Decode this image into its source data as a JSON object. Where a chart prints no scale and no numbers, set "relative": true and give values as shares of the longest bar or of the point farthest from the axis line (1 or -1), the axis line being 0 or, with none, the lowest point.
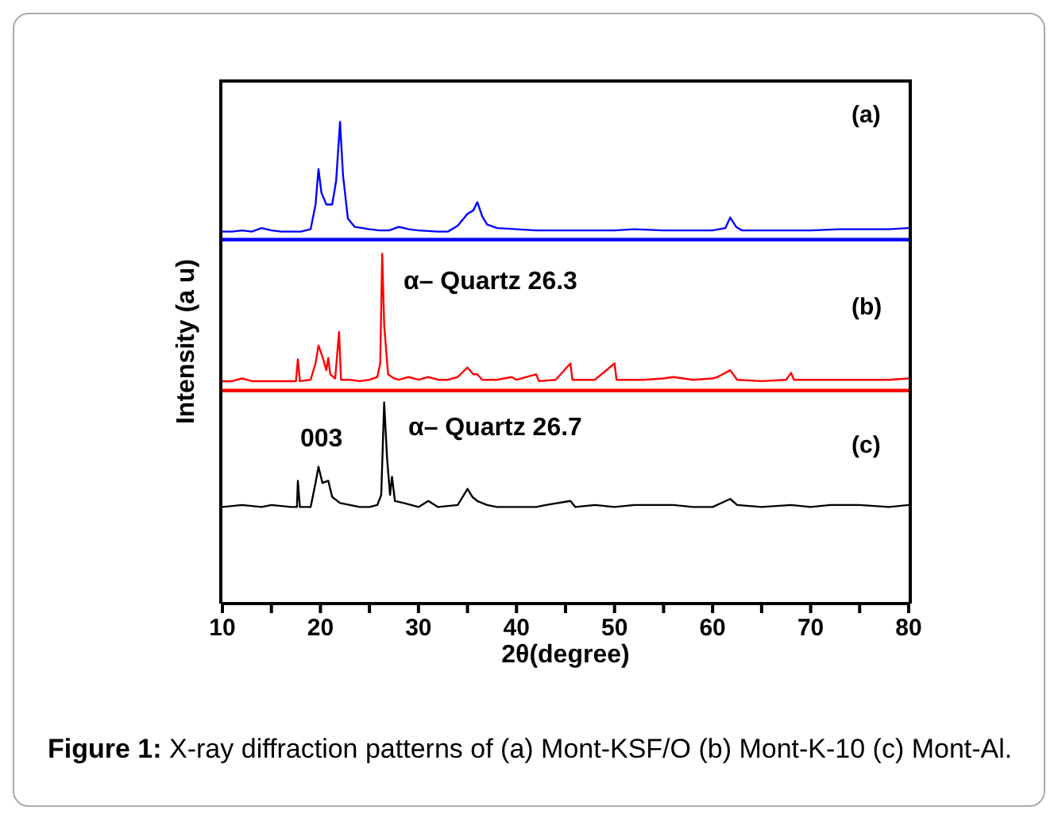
{
  "chart_data": [
    {
      "type": "line",
      "relative": true,
      "color": "#0000ff",
      "legend": false,
      "grid": false,
      "marker": "none",
      "tick_labels": false,
      "xlim": [
        10,
        80
      ],
      "annotations": [
        "(a)"
      ],
      "x": [
        10,
        11,
        12,
        13,
        14,
        15,
        16,
        17,
        18,
        19,
        19.5,
        19.8,
        20.1,
        20.6,
        21.2,
        21.6,
        22,
        22.3,
        22.8,
        23.5,
        25,
        26,
        27,
        28,
        29,
        30,
        32,
        33,
        34,
        35,
        35.6,
        36,
        36.5,
        37,
        38,
        40,
        42,
        45,
        48,
        50,
        52,
        55,
        58,
        60,
        61.3,
        61.8,
        62.4,
        63,
        65,
        68,
        70,
        73,
        75,
        78,
        80
      ],
      "values": [
        0.07,
        0.07,
        0.08,
        0.07,
        0.1,
        0.08,
        0.07,
        0.07,
        0.07,
        0.09,
        0.3,
        0.6,
        0.4,
        0.3,
        0.3,
        0.5,
        1.0,
        0.55,
        0.18,
        0.11,
        0.09,
        0.08,
        0.08,
        0.11,
        0.09,
        0.08,
        0.07,
        0.07,
        0.12,
        0.22,
        0.25,
        0.32,
        0.2,
        0.13,
        0.1,
        0.09,
        0.08,
        0.08,
        0.08,
        0.08,
        0.09,
        0.08,
        0.08,
        0.08,
        0.1,
        0.19,
        0.11,
        0.08,
        0.08,
        0.08,
        0.08,
        0.09,
        0.09,
        0.09,
        0.1
      ]
    },
    {
      "type": "line",
      "relative": true,
      "color": "#ff0000",
      "legend": false,
      "grid": false,
      "marker": "none",
      "tick_labels": false,
      "xlim": [
        10,
        80
      ],
      "ylabel": "Intensity (a u)",
      "annotations": [
        "(b)",
        "α– Quartz 26.3"
      ],
      "x": [
        10,
        11,
        12,
        13,
        15,
        17,
        17.5,
        17.7,
        17.9,
        19,
        19.5,
        19.8,
        20.2,
        20.6,
        20.8,
        21,
        21.5,
        21.9,
        22.1,
        23,
        24,
        25,
        25.8,
        26.1,
        26.3,
        26.5,
        26.7,
        26.9,
        27.5,
        28,
        29,
        30,
        31,
        32,
        33,
        34,
        35,
        35.6,
        36,
        36.5,
        38,
        39.5,
        40,
        42,
        42.3,
        44,
        45.5,
        45.7,
        48,
        50,
        50.2,
        53,
        55,
        56,
        58,
        60,
        60.5,
        61.8,
        62.5,
        65,
        67.5,
        68,
        68.3,
        72,
        75,
        78,
        80
      ],
      "values": [
        0.07,
        0.07,
        0.09,
        0.07,
        0.07,
        0.07,
        0.07,
        0.23,
        0.07,
        0.08,
        0.2,
        0.33,
        0.25,
        0.15,
        0.24,
        0.12,
        0.09,
        0.43,
        0.08,
        0.08,
        0.07,
        0.08,
        0.1,
        0.2,
        1.0,
        0.48,
        0.3,
        0.12,
        0.09,
        0.08,
        0.1,
        0.08,
        0.1,
        0.08,
        0.08,
        0.1,
        0.17,
        0.12,
        0.12,
        0.08,
        0.08,
        0.1,
        0.08,
        0.12,
        0.07,
        0.08,
        0.2,
        0.08,
        0.08,
        0.2,
        0.08,
        0.08,
        0.09,
        0.1,
        0.08,
        0.09,
        0.1,
        0.15,
        0.08,
        0.07,
        0.08,
        0.13,
        0.08,
        0.08,
        0.08,
        0.08,
        0.09
      ]
    },
    {
      "type": "line",
      "relative": true,
      "color": "#000000",
      "legend": false,
      "grid": false,
      "marker": "none",
      "tick_labels": "x",
      "xlim": [
        10,
        80
      ],
      "xlabel": "2θ(degree)",
      "xticks": [
        10,
        {
          "value": 15,
          "label": null
        },
        20,
        {
          "value": 25,
          "label": null
        },
        30,
        {
          "value": 35,
          "label": null
        },
        40,
        {
          "value": 45,
          "label": null
        },
        50,
        {
          "value": 55,
          "label": null
        },
        60,
        {
          "value": 65,
          "label": null
        },
        70,
        {
          "value": 75,
          "label": null
        },
        80
      ],
      "annotations": [
        "(c)",
        "003",
        "α– Quartz 26.7",
        "Figure 1: X-ray diffraction patterns of (a) Mont-KSF/O (b) Mont-K-10 (c) Mont-Al."
      ],
      "x": [
        10,
        12,
        14,
        15,
        17,
        17.6,
        17.7,
        17.9,
        19,
        19.5,
        19.8,
        20.2,
        20.8,
        21.2,
        22,
        23,
        24,
        25,
        25.8,
        26.2,
        26.5,
        26.8,
        27.1,
        27.3,
        27.6,
        28.5,
        30,
        31,
        32,
        34,
        35,
        35.5,
        36,
        37,
        38,
        40,
        42,
        43,
        45.5,
        46,
        48,
        50,
        52,
        55,
        56,
        58,
        60,
        61.8,
        62.5,
        65,
        68,
        70,
        72,
        75,
        78,
        80
      ],
      "values": [
        0.48,
        0.49,
        0.48,
        0.49,
        0.48,
        0.48,
        0.61,
        0.48,
        0.48,
        0.6,
        0.68,
        0.6,
        0.61,
        0.53,
        0.5,
        0.49,
        0.48,
        0.48,
        0.49,
        0.54,
        1.0,
        0.72,
        0.54,
        0.63,
        0.51,
        0.5,
        0.48,
        0.51,
        0.48,
        0.49,
        0.57,
        0.53,
        0.51,
        0.49,
        0.48,
        0.48,
        0.48,
        0.49,
        0.51,
        0.48,
        0.49,
        0.48,
        0.49,
        0.49,
        0.49,
        0.48,
        0.48,
        0.52,
        0.49,
        0.48,
        0.49,
        0.48,
        0.49,
        0.49,
        0.48,
        0.49
      ]
    }
  ]
}
